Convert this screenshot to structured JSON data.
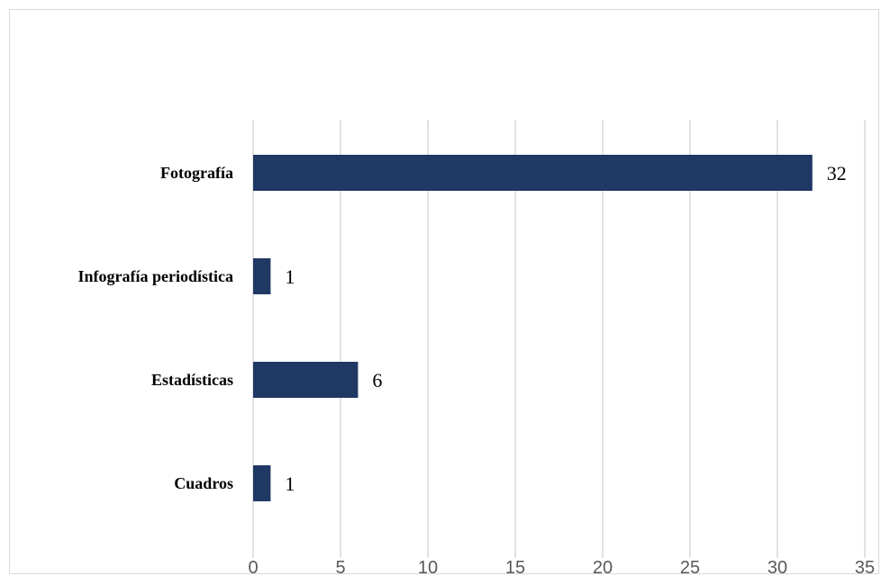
{
  "chart_data": {
    "type": "bar",
    "orientation": "horizontal",
    "categories": [
      "Fotografía",
      "Infografía periodística",
      "Estadísticas",
      "Cuadros"
    ],
    "values": [
      32,
      1,
      6,
      1
    ],
    "data_labels": [
      "32",
      "1",
      "6",
      "1"
    ],
    "x_ticks": [
      "0",
      "5",
      "10",
      "15",
      "20",
      "25",
      "30",
      "35"
    ],
    "xlim": [
      0,
      35
    ],
    "grid": "vertical",
    "legend": "none",
    "bar_color": "#1f3864",
    "grid_color": "#d9d9d9"
  }
}
